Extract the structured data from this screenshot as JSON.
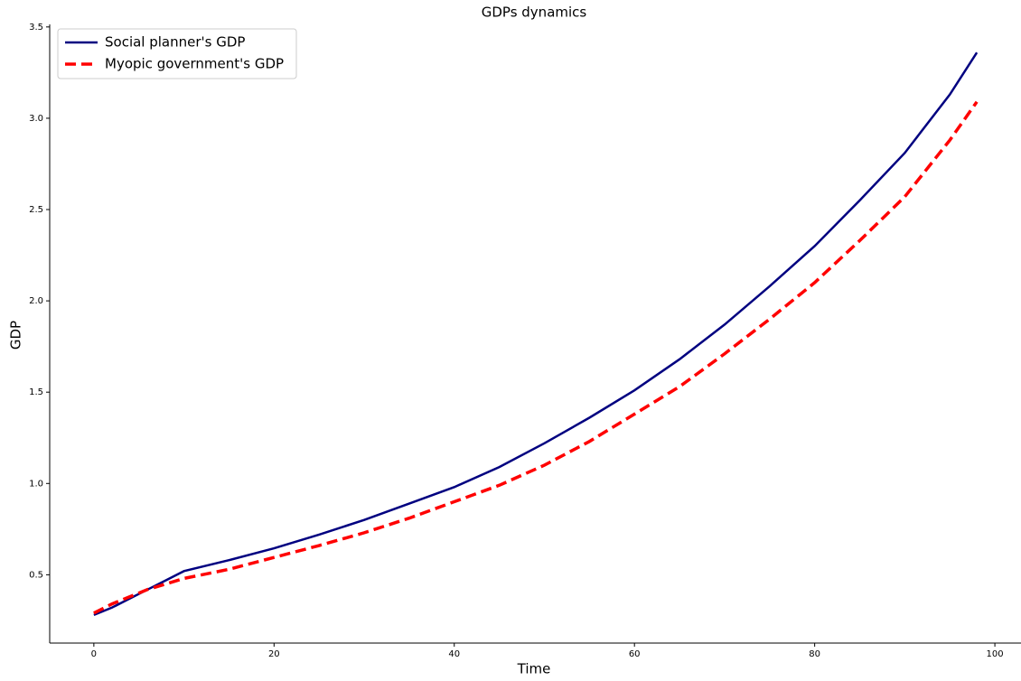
{
  "chart_data": {
    "type": "line",
    "title": "GDPs dynamics",
    "x_label": "Time",
    "y_label": "GDP",
    "x": [
      0,
      2,
      4,
      6,
      8,
      10,
      15,
      20,
      25,
      30,
      35,
      40,
      45,
      50,
      55,
      60,
      65,
      70,
      75,
      80,
      85,
      90,
      95,
      98
    ],
    "series": [
      {
        "name": "Social planner's GDP",
        "color": "#000080",
        "dash": "solid",
        "values": [
          0.28,
          0.32,
          0.37,
          0.42,
          0.47,
          0.52,
          0.58,
          0.645,
          0.72,
          0.8,
          0.89,
          0.98,
          1.09,
          1.22,
          1.36,
          1.51,
          1.68,
          1.87,
          2.08,
          2.3,
          2.55,
          2.81,
          3.13,
          3.36
        ]
      },
      {
        "name": "Myopic government's GDP",
        "color": "#ff0000",
        "dash": "dashed",
        "values": [
          0.29,
          0.34,
          0.38,
          0.42,
          0.45,
          0.48,
          0.53,
          0.595,
          0.66,
          0.73,
          0.81,
          0.9,
          0.99,
          1.1,
          1.23,
          1.38,
          1.53,
          1.71,
          1.9,
          2.1,
          2.33,
          2.57,
          2.88,
          3.09
        ]
      }
    ],
    "xlim": [
      -4.9,
      102.9
    ],
    "ylim": [
      0.126,
      3.514
    ],
    "xticks": [
      0,
      20,
      40,
      60,
      80,
      100
    ],
    "yticks": [
      0.5,
      {
        "value": 1.0,
        "label": "1.0"
      },
      1.5,
      {
        "value": 2.0,
        "label": "2.0"
      },
      2.5,
      {
        "value": 3.0,
        "label": "3.0"
      },
      3.5
    ],
    "legend": "upper left",
    "grid": false
  }
}
